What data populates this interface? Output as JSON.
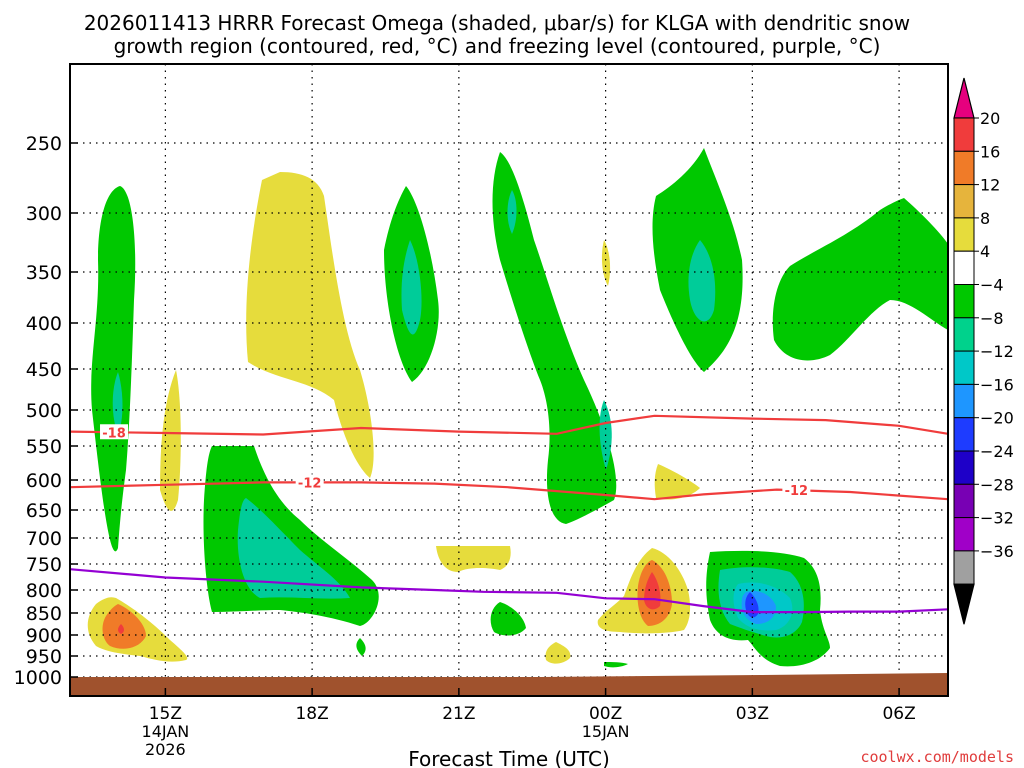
{
  "chart_data": {
    "type": "contour",
    "title_line1": "2026011413 HRRR Forecast Omega (shaded, μbar/s) for KLGA with dendritic snow",
    "title_line2": "growth region (contoured, red, °C) and freezing level (contoured, purple, °C)",
    "xlabel": "Forecast Time (UTC)",
    "ylabel": "",
    "credit": "coolwx.com/models",
    "x_ticks": [
      {
        "hour": 15,
        "label": "15Z",
        "sub1": "14JAN",
        "sub2": "2026"
      },
      {
        "hour": 18,
        "label": "18Z",
        "sub1": "",
        "sub2": ""
      },
      {
        "hour": 21,
        "label": "21Z",
        "sub1": "",
        "sub2": ""
      },
      {
        "hour": 24,
        "label": "00Z",
        "sub1": "15JAN",
        "sub2": ""
      },
      {
        "hour": 27,
        "label": "03Z",
        "sub1": "",
        "sub2": ""
      },
      {
        "hour": 30,
        "label": "06Z",
        "sub1": "",
        "sub2": ""
      }
    ],
    "xlim": [
      13.05,
      31.0
    ],
    "y_ticks": [
      "250",
      "300",
      "350",
      "400",
      "450",
      "500",
      "550",
      "600",
      "650",
      "700",
      "750",
      "800",
      "850",
      "900",
      "950",
      "1000"
    ],
    "ylim_hpa": [
      1020,
      200
    ],
    "ground": {
      "color": "#a0522d",
      "pressure_hpa": 1000
    },
    "colorbar": {
      "colors": [
        "#e6007e",
        "#f03c3c",
        "#f07b28",
        "#e6b43c",
        "#e6dc3c",
        "#ffffff",
        "#00c800",
        "#00d28c",
        "#00c8c8",
        "#1e96ff",
        "#1e3cff",
        "#1e00c8",
        "#7800b4",
        "#a000c8",
        "#a0a0a0",
        "#000000"
      ],
      "labels": [
        "20",
        "16",
        "12",
        "8",
        "4",
        "−4",
        "−8",
        "−12",
        "−16",
        "−20",
        "−24",
        "−28",
        "−32",
        "−36"
      ]
    },
    "shading_colors": {
      "green": "#00c800",
      "teal": "#00cc99",
      "cyan": "#00c8c8",
      "lightblue": "#1e96ff",
      "blue": "#1e3cff",
      "yellow": "#e6dc3c",
      "gold": "#e6b43c",
      "orange": "#f07b28",
      "red": "#f03c3c"
    },
    "series": [
      {
        "name": "-18",
        "color": "#f03c3c",
        "label_hour": 13.95,
        "points": [
          [
            13.05,
            530
          ],
          [
            15,
            532
          ],
          [
            17,
            534
          ],
          [
            19,
            525
          ],
          [
            21,
            530
          ],
          [
            23,
            533
          ],
          [
            24,
            518
          ],
          [
            25,
            508
          ],
          [
            27,
            512
          ],
          [
            28.5,
            514
          ],
          [
            30,
            522
          ],
          [
            31,
            533
          ]
        ]
      },
      {
        "name": "-12",
        "color": "#f03c3c",
        "label_hour": 17.95,
        "label_hour_2": 27.9,
        "points": [
          [
            13.05,
            612
          ],
          [
            15,
            608
          ],
          [
            17,
            604
          ],
          [
            19,
            604
          ],
          [
            20.5,
            606
          ],
          [
            22,
            612
          ],
          [
            24,
            625
          ],
          [
            25,
            632
          ],
          [
            26,
            624
          ],
          [
            27.5,
            616
          ],
          [
            29,
            620
          ],
          [
            31,
            632
          ]
        ]
      },
      {
        "name": "0",
        "color": "#9400d3",
        "points": [
          [
            13.05,
            760
          ],
          [
            15,
            776
          ],
          [
            17,
            784
          ],
          [
            19,
            795
          ],
          [
            20.5,
            800
          ],
          [
            21.5,
            804
          ],
          [
            23,
            806
          ],
          [
            24,
            818
          ],
          [
            25,
            820
          ],
          [
            26,
            835
          ],
          [
            27,
            848
          ],
          [
            28,
            848
          ],
          [
            29,
            847
          ],
          [
            30,
            847
          ],
          [
            31,
            842
          ]
        ]
      }
    ]
  }
}
